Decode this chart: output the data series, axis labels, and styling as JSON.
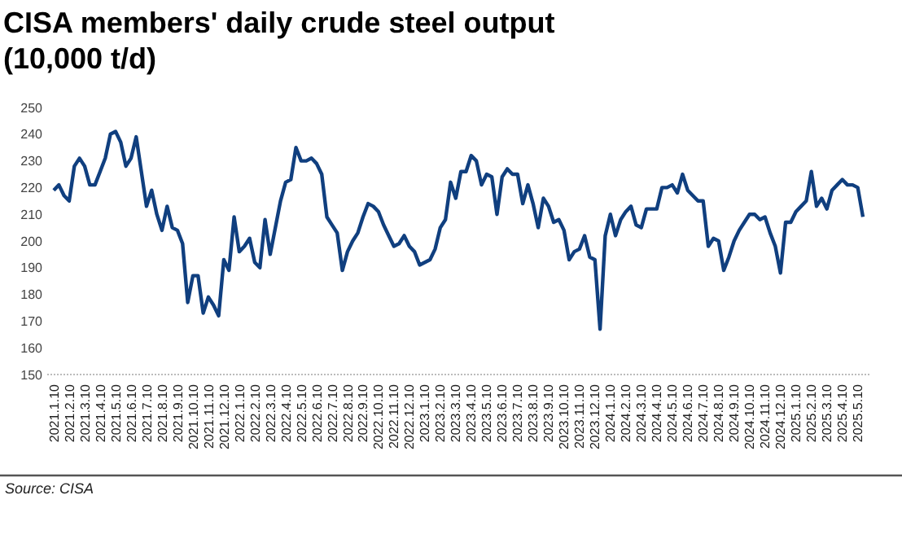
{
  "chart_data": {
    "type": "line",
    "title": "CISA members' daily crude steel output (10,000 t/d)",
    "categories": [
      "2021.1.10",
      null,
      null,
      "2021.2.10",
      null,
      null,
      "2021.3.10",
      null,
      null,
      "2021.4.10",
      null,
      null,
      "2021.5.10",
      null,
      null,
      "2021.6.10",
      null,
      null,
      "2021.7.10",
      null,
      null,
      "2021.8.10",
      null,
      null,
      "2021.9.10",
      null,
      null,
      "2021.10.10",
      null,
      null,
      "2021.11.10",
      null,
      null,
      "2021.12.10",
      null,
      null,
      "2022.1.10",
      null,
      null,
      "2022.2.10",
      null,
      null,
      "2022.3.10",
      null,
      null,
      "2022.4.10",
      null,
      null,
      "2022.5.10",
      null,
      null,
      "2022.6.10",
      null,
      null,
      "2022.7.10",
      null,
      null,
      "2022.8.10",
      null,
      null,
      "2022.9.10",
      null,
      null,
      "2022.10.10",
      null,
      null,
      "2022.11.10",
      null,
      null,
      "2022.12.10",
      null,
      null,
      "2023.1.10",
      null,
      null,
      "2023.2.10",
      null,
      null,
      "2023.3.10",
      null,
      null,
      "2023.4.10",
      null,
      null,
      "2023.5.10",
      null,
      null,
      "2023.6.10",
      null,
      null,
      "2023.7.10",
      null,
      null,
      "2023.8.10",
      null,
      null,
      "2023.9.10",
      null,
      null,
      "2023.10.10",
      null,
      null,
      "2023.11.10",
      null,
      null,
      "2023.12.10",
      null,
      null,
      "2024.1.10",
      null,
      null,
      "2024.2.10",
      null,
      null,
      "2024.3.10",
      null,
      null,
      "2024.4.10",
      null,
      null,
      "2024.5.10",
      null,
      null,
      "2024.6.10",
      null,
      null,
      "2024.7.10",
      null,
      null,
      "2024.8.10",
      null,
      null,
      "2024.9.10",
      null,
      null,
      "2024.10.10",
      null,
      null,
      "2024.11.10",
      null,
      null,
      "2024.12.10",
      null,
      null,
      "2025.1.10",
      null,
      null,
      "2025.2.10",
      null,
      null,
      "2025.3.10",
      null,
      null,
      "2025.4.10",
      null,
      null,
      "2025.5.10",
      null
    ],
    "series": [
      {
        "color": "#103f7f",
        "values": [
          219,
          221,
          217,
          215,
          228,
          231,
          228,
          221,
          221,
          226,
          231,
          240,
          241,
          237,
          228,
          231,
          239,
          226,
          213,
          219,
          210,
          204,
          213,
          205,
          204,
          199,
          177,
          187,
          187,
          173,
          179,
          176,
          172,
          193,
          189,
          209,
          196,
          198,
          201,
          192,
          190,
          208,
          195,
          205,
          215,
          222,
          223,
          235,
          230,
          230,
          231,
          229,
          225,
          209,
          206,
          203,
          189,
          196,
          200,
          203,
          209,
          214,
          213,
          211,
          206,
          202,
          198,
          199,
          202,
          198,
          196,
          191,
          192,
          193,
          197,
          205,
          208,
          222,
          216,
          226,
          226,
          232,
          230,
          221,
          225,
          224,
          210,
          224,
          227,
          225,
          225,
          214,
          221,
          214,
          205,
          216,
          213,
          207,
          208,
          204,
          193,
          196,
          197,
          202,
          194,
          193,
          167,
          202,
          210,
          202,
          208,
          211,
          213,
          206,
          205,
          212,
          212,
          212,
          220,
          220,
          221,
          218,
          225,
          219,
          217,
          215,
          215,
          198,
          201,
          200,
          189,
          194,
          200,
          204,
          207,
          210,
          210,
          208,
          209,
          203,
          198,
          188,
          207,
          207,
          211,
          213,
          215,
          226,
          213,
          216,
          212,
          219,
          221,
          223,
          221,
          221,
          220,
          209
        ]
      }
    ],
    "ylim": [
      150,
      250
    ],
    "yticks": [
      150,
      160,
      170,
      180,
      190,
      200,
      210,
      220,
      230,
      240,
      250
    ],
    "grid": false,
    "annotations": [
      "Source: CISA"
    ]
  }
}
